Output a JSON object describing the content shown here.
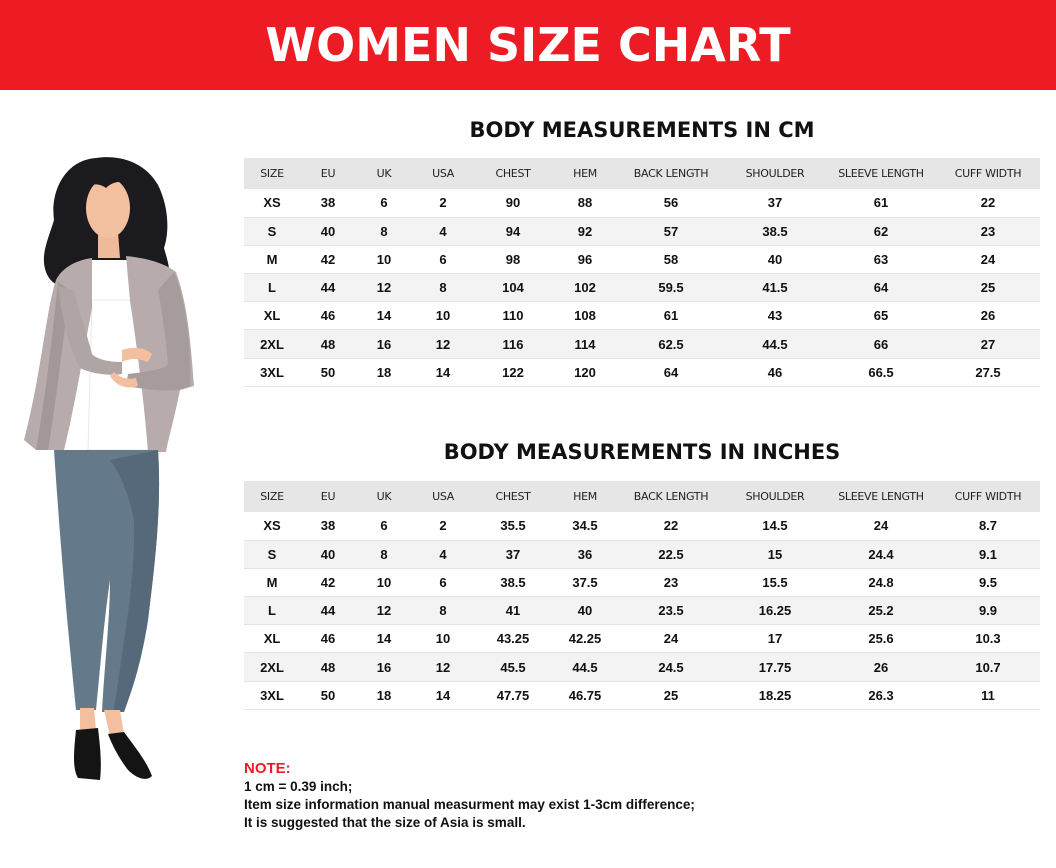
{
  "title": "WOMEN SIZE CHART",
  "columns": [
    "SIZE",
    "EU",
    "UK",
    "USA",
    "CHEST",
    "HEM",
    "BACK LENGTH",
    "SHOULDER",
    "SLEEVE LENGTH",
    "CUFF WIDTH"
  ],
  "cm_table": {
    "title": "BODY MEASUREMENTS IN CM",
    "rows": [
      [
        "XS",
        "38",
        "6",
        "2",
        "90",
        "88",
        "56",
        "37",
        "61",
        "22"
      ],
      [
        "S",
        "40",
        "8",
        "4",
        "94",
        "92",
        "57",
        "38.5",
        "62",
        "23"
      ],
      [
        "M",
        "42",
        "10",
        "6",
        "98",
        "96",
        "58",
        "40",
        "63",
        "24"
      ],
      [
        "L",
        "44",
        "12",
        "8",
        "104",
        "102",
        "59.5",
        "41.5",
        "64",
        "25"
      ],
      [
        "XL",
        "46",
        "14",
        "10",
        "110",
        "108",
        "61",
        "43",
        "65",
        "26"
      ],
      [
        "2XL",
        "48",
        "16",
        "12",
        "116",
        "114",
        "62.5",
        "44.5",
        "66",
        "27"
      ],
      [
        "3XL",
        "50",
        "18",
        "14",
        "122",
        "120",
        "64",
        "46",
        "66.5",
        "27.5"
      ]
    ]
  },
  "inch_table": {
    "title": "BODY MEASUREMENTS IN INCHES",
    "rows": [
      [
        "XS",
        "38",
        "6",
        "2",
        "35.5",
        "34.5",
        "22",
        "14.5",
        "24",
        "8.7"
      ],
      [
        "S",
        "40",
        "8",
        "4",
        "37",
        "36",
        "22.5",
        "15",
        "24.4",
        "9.1"
      ],
      [
        "M",
        "42",
        "10",
        "6",
        "38.5",
        "37.5",
        "23",
        "15.5",
        "24.8",
        "9.5"
      ],
      [
        "L",
        "44",
        "12",
        "8",
        "41",
        "40",
        "23.5",
        "16.25",
        "25.2",
        "9.9"
      ],
      [
        "XL",
        "46",
        "14",
        "10",
        "43.25",
        "42.25",
        "24",
        "17",
        "25.6",
        "10.3"
      ],
      [
        "2XL",
        "48",
        "16",
        "12",
        "45.5",
        "44.5",
        "24.5",
        "17.75",
        "26",
        "10.7"
      ],
      [
        "3XL",
        "50",
        "18",
        "14",
        "47.75",
        "46.75",
        "25",
        "18.25",
        "26.3",
        "11"
      ]
    ]
  },
  "note": {
    "title": "NOTE:",
    "lines": [
      "1 cm = 0.39 inch;",
      "Item size information manual measurment may exist 1-3cm difference;",
      "It is suggested that the size of Asia is small."
    ]
  },
  "colors": {
    "brand_red": "#ed1c24",
    "header_row": "#e6e6e6",
    "stripe_row": "#f3f3f3"
  },
  "illustration": "woman-figure-icon"
}
